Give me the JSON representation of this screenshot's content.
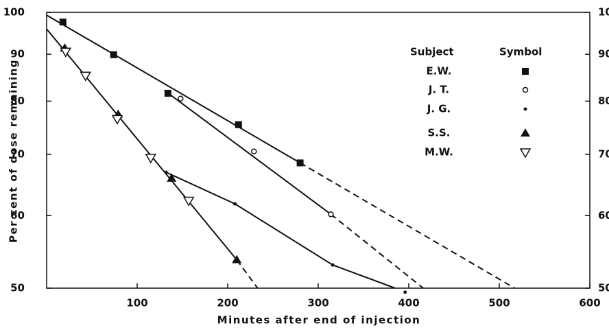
{
  "chart_data": {
    "type": "scatter",
    "x_label": "Minutes after end of injection",
    "y_label": "Per cent of dose remaining",
    "xlim": [
      0,
      600
    ],
    "xticks": [
      100,
      200,
      300,
      400,
      500,
      600
    ],
    "ylim": [
      50,
      100
    ],
    "yticks": [
      50,
      60,
      70,
      80,
      90,
      100
    ],
    "y_log": true,
    "legend_headers": [
      "Subject",
      "Symbol"
    ],
    "color": "#111111",
    "series": [
      {
        "name": "E.W.",
        "marker": "square",
        "x": [
          18,
          74,
          134,
          212,
          280
        ],
        "values": [
          97.6,
          89.9,
          81.6,
          75.4,
          68.5
        ],
        "fit": {
          "x": [
            0,
            280
          ],
          "y": [
            99.3,
            68.5
          ]
        },
        "extension": {
          "x": [
            280,
            517
          ],
          "y": [
            68.5,
            50
          ]
        }
      },
      {
        "name": "J. T.",
        "marker": "circle-open",
        "x": [
          148,
          229,
          314
        ],
        "values": [
          80.5,
          70.5,
          60.2
        ],
        "fit": {
          "x": [
            130,
            314
          ],
          "y": [
            82.2,
            60.2
          ]
        },
        "extension": {
          "x": [
            314,
            416
          ],
          "y": [
            60.2,
            50
          ]
        }
      },
      {
        "name": "J. G.",
        "marker": "dot",
        "x": [
          132,
          208,
          316,
          396
        ],
        "values": [
          66.9,
          61.8,
          53,
          49.5
        ],
        "fit": {
          "x": [
            132,
            208,
            316,
            385
          ],
          "y": [
            66.9,
            61.8,
            53,
            50
          ]
        }
      },
      {
        "name": "S.S.",
        "marker": "triangle",
        "x": [
          20,
          79,
          138,
          210
        ],
        "values": [
          91.4,
          77.4,
          65.9,
          53.7
        ],
        "fit": {
          "x": [
            0,
            210
          ],
          "y": [
            95.9,
            53.7
          ]
        },
        "extension": {
          "x": [
            210,
            233
          ],
          "y": [
            53.7,
            50
          ]
        }
      },
      {
        "name": "M.W.",
        "marker": "triangle-down-open",
        "x": [
          21,
          43,
          78,
          115,
          157
        ],
        "values": [
          90.6,
          85.3,
          76.5,
          69.4,
          62.3
        ]
      }
    ]
  }
}
